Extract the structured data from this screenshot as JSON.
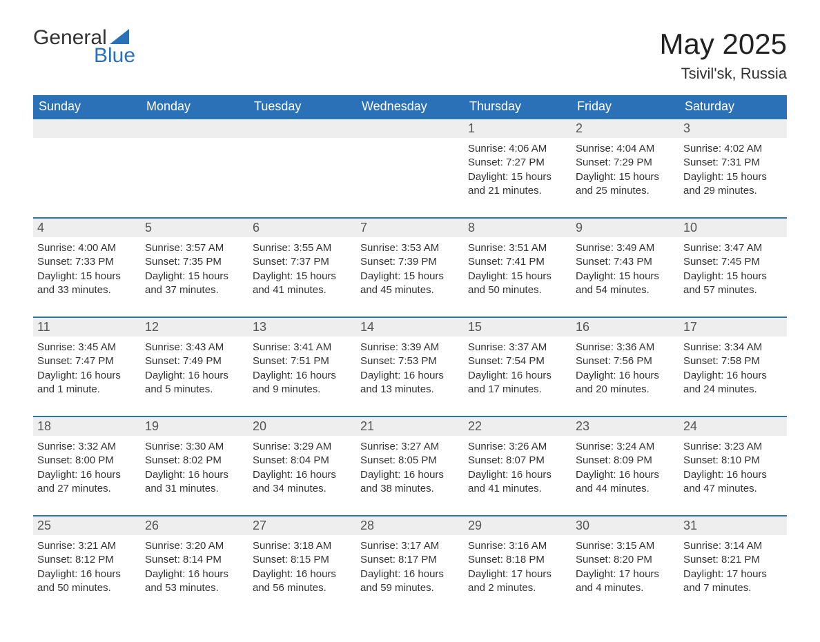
{
  "logo": {
    "word1": "General",
    "word2": "Blue"
  },
  "header": {
    "month": "May 2025",
    "location": "Tsivil'sk, Russia"
  },
  "colors": {
    "brand_blue": "#2a71b8",
    "header_row_gray": "#eeeeee",
    "text": "#333333",
    "background": "#ffffff"
  },
  "day_names": [
    "Sunday",
    "Monday",
    "Tuesday",
    "Wednesday",
    "Thursday",
    "Friday",
    "Saturday"
  ],
  "first_weekday_index": 4,
  "num_days": 31,
  "days": {
    "1": {
      "sunrise": "4:06 AM",
      "sunset": "7:27 PM",
      "daylight": "15 hours and 21 minutes."
    },
    "2": {
      "sunrise": "4:04 AM",
      "sunset": "7:29 PM",
      "daylight": "15 hours and 25 minutes."
    },
    "3": {
      "sunrise": "4:02 AM",
      "sunset": "7:31 PM",
      "daylight": "15 hours and 29 minutes."
    },
    "4": {
      "sunrise": "4:00 AM",
      "sunset": "7:33 PM",
      "daylight": "15 hours and 33 minutes."
    },
    "5": {
      "sunrise": "3:57 AM",
      "sunset": "7:35 PM",
      "daylight": "15 hours and 37 minutes."
    },
    "6": {
      "sunrise": "3:55 AM",
      "sunset": "7:37 PM",
      "daylight": "15 hours and 41 minutes."
    },
    "7": {
      "sunrise": "3:53 AM",
      "sunset": "7:39 PM",
      "daylight": "15 hours and 45 minutes."
    },
    "8": {
      "sunrise": "3:51 AM",
      "sunset": "7:41 PM",
      "daylight": "15 hours and 50 minutes."
    },
    "9": {
      "sunrise": "3:49 AM",
      "sunset": "7:43 PM",
      "daylight": "15 hours and 54 minutes."
    },
    "10": {
      "sunrise": "3:47 AM",
      "sunset": "7:45 PM",
      "daylight": "15 hours and 57 minutes."
    },
    "11": {
      "sunrise": "3:45 AM",
      "sunset": "7:47 PM",
      "daylight": "16 hours and 1 minute."
    },
    "12": {
      "sunrise": "3:43 AM",
      "sunset": "7:49 PM",
      "daylight": "16 hours and 5 minutes."
    },
    "13": {
      "sunrise": "3:41 AM",
      "sunset": "7:51 PM",
      "daylight": "16 hours and 9 minutes."
    },
    "14": {
      "sunrise": "3:39 AM",
      "sunset": "7:53 PM",
      "daylight": "16 hours and 13 minutes."
    },
    "15": {
      "sunrise": "3:37 AM",
      "sunset": "7:54 PM",
      "daylight": "16 hours and 17 minutes."
    },
    "16": {
      "sunrise": "3:36 AM",
      "sunset": "7:56 PM",
      "daylight": "16 hours and 20 minutes."
    },
    "17": {
      "sunrise": "3:34 AM",
      "sunset": "7:58 PM",
      "daylight": "16 hours and 24 minutes."
    },
    "18": {
      "sunrise": "3:32 AM",
      "sunset": "8:00 PM",
      "daylight": "16 hours and 27 minutes."
    },
    "19": {
      "sunrise": "3:30 AM",
      "sunset": "8:02 PM",
      "daylight": "16 hours and 31 minutes."
    },
    "20": {
      "sunrise": "3:29 AM",
      "sunset": "8:04 PM",
      "daylight": "16 hours and 34 minutes."
    },
    "21": {
      "sunrise": "3:27 AM",
      "sunset": "8:05 PM",
      "daylight": "16 hours and 38 minutes."
    },
    "22": {
      "sunrise": "3:26 AM",
      "sunset": "8:07 PM",
      "daylight": "16 hours and 41 minutes."
    },
    "23": {
      "sunrise": "3:24 AM",
      "sunset": "8:09 PM",
      "daylight": "16 hours and 44 minutes."
    },
    "24": {
      "sunrise": "3:23 AM",
      "sunset": "8:10 PM",
      "daylight": "16 hours and 47 minutes."
    },
    "25": {
      "sunrise": "3:21 AM",
      "sunset": "8:12 PM",
      "daylight": "16 hours and 50 minutes."
    },
    "26": {
      "sunrise": "3:20 AM",
      "sunset": "8:14 PM",
      "daylight": "16 hours and 53 minutes."
    },
    "27": {
      "sunrise": "3:18 AM",
      "sunset": "8:15 PM",
      "daylight": "16 hours and 56 minutes."
    },
    "28": {
      "sunrise": "3:17 AM",
      "sunset": "8:17 PM",
      "daylight": "16 hours and 59 minutes."
    },
    "29": {
      "sunrise": "3:16 AM",
      "sunset": "8:18 PM",
      "daylight": "17 hours and 2 minutes."
    },
    "30": {
      "sunrise": "3:15 AM",
      "sunset": "8:20 PM",
      "daylight": "17 hours and 4 minutes."
    },
    "31": {
      "sunrise": "3:14 AM",
      "sunset": "8:21 PM",
      "daylight": "17 hours and 7 minutes."
    }
  },
  "labels": {
    "sunrise": "Sunrise:",
    "sunset": "Sunset:",
    "daylight": "Daylight:"
  }
}
